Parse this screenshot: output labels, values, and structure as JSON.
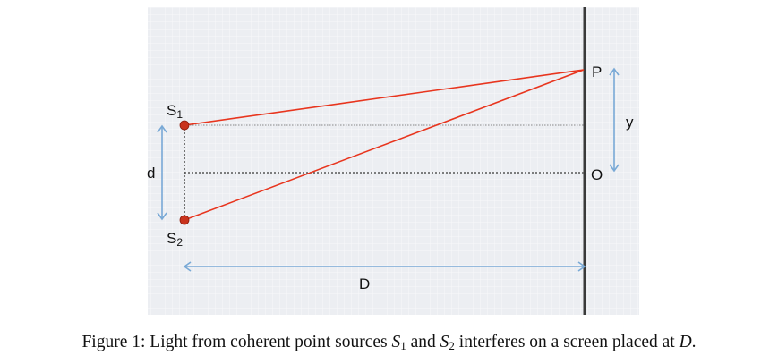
{
  "diagram": {
    "labels": {
      "s1": "S",
      "s1_sub": "1",
      "s2": "S",
      "s2_sub": "2",
      "p": "P",
      "o": "O",
      "y": "y",
      "d": "d",
      "big_d": "D"
    },
    "colors": {
      "background": "#eceef2",
      "grid": "#ffffff",
      "ray": "#e8351e",
      "source_fill": "#c9331d",
      "arrow": "#79a9d6",
      "screen": "#3a3a3a",
      "dotted": "#555555"
    }
  },
  "caption": {
    "prefix": "Figure 1: Light from coherent point sources ",
    "s1_var": "S",
    "s1_sub": "1",
    "middle": " and ",
    "s2_var": "S",
    "s2_sub": "2",
    "suffix_text": " interferes on a screen placed at ",
    "d_var": "D",
    "end": "."
  }
}
